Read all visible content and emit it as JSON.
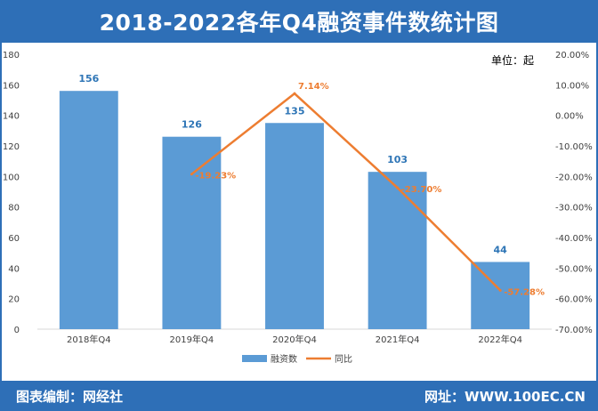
{
  "title": "2018-2022各年Q4融资事件数统计图",
  "unit_label": "单位：起",
  "footer": {
    "left": "图表编制：网经社",
    "right": "网址：WWW.100EC.CN"
  },
  "colors": {
    "header_bg": "#2e6fb7",
    "bar": "#5b9bd5",
    "line": "#ed7d31"
  },
  "chart_data": {
    "type": "bar",
    "categories": [
      "2018年Q4",
      "2019年Q4",
      "2020年Q4",
      "2021年Q4",
      "2022年Q4"
    ],
    "series": [
      {
        "name": "融资数",
        "type": "bar",
        "axis": "left",
        "values": [
          156,
          126,
          135,
          103,
          44
        ],
        "labels": [
          "156",
          "126",
          "135",
          "103",
          "44"
        ]
      },
      {
        "name": "同比",
        "type": "line",
        "axis": "right",
        "values": [
          null,
          -19.23,
          7.14,
          -23.7,
          -57.28
        ],
        "labels": [
          "",
          "-19.23%",
          "7.14%",
          "-23.70%",
          "-57.28%"
        ]
      }
    ],
    "y_left": {
      "lim": [
        0,
        180
      ],
      "ticks": [
        "0",
        "20",
        "40",
        "60",
        "80",
        "100",
        "120",
        "140",
        "160",
        "180"
      ]
    },
    "y_right": {
      "lim": [
        -70,
        20
      ],
      "ticks": [
        "-70.00%",
        "-60.00%",
        "-50.00%",
        "-40.00%",
        "-30.00%",
        "-20.00%",
        "-10.00%",
        "0.00%",
        "10.00%",
        "20.00%"
      ]
    },
    "legend": "bottom",
    "grid": false
  }
}
